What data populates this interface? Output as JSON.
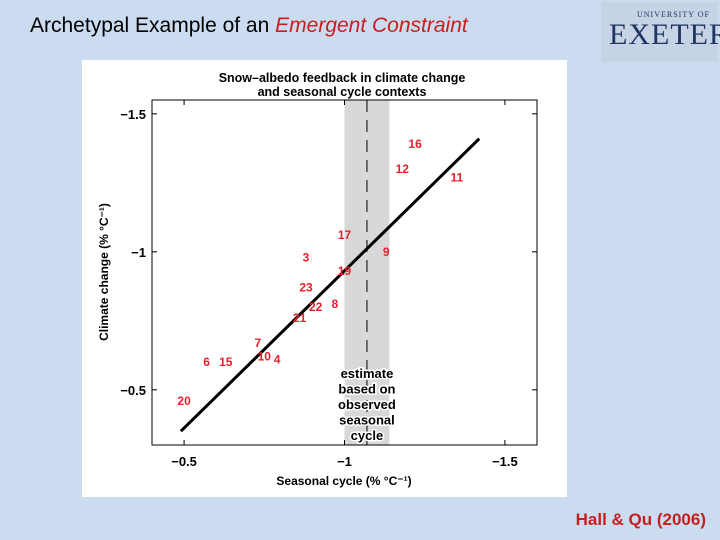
{
  "slide": {
    "title_prefix": "Archetypal Example of an ",
    "title_emphasis": "Emergent Constraint",
    "citation": "Hall & Qu (2006)",
    "logo": {
      "top": "UNIVERSITY OF",
      "main": "EXETER"
    },
    "colors": {
      "background": "#ccdcf0",
      "accent": "#c81e1e",
      "logo": "#1f3563"
    }
  },
  "chart_data": {
    "type": "scatter",
    "title_lines": [
      "Snow–albedo feedback in climate change",
      "and seasonal cycle contexts"
    ],
    "xlabel": "Seasonal cycle (% °C⁻¹)",
    "ylabel": "Climate change (% °C⁻¹)",
    "xlim": [
      -0.4,
      -1.6
    ],
    "ylim": [
      -0.3,
      -1.55
    ],
    "x_ticks": [
      -0.5,
      -1,
      -1.5
    ],
    "x_tick_labels": [
      "−0.5",
      "−1",
      "−1.5"
    ],
    "y_ticks": [
      -0.5,
      -1,
      -1.5
    ],
    "y_tick_labels": [
      "−0.5",
      "−1",
      "−1.5"
    ],
    "marker_color": "#e8202a",
    "points": [
      {
        "label": "16",
        "x": -1.22,
        "y": -1.39
      },
      {
        "label": "12",
        "x": -1.18,
        "y": -1.3
      },
      {
        "label": "11",
        "x": -1.35,
        "y": -1.27
      },
      {
        "label": "17",
        "x": -1.0,
        "y": -1.06
      },
      {
        "label": "9",
        "x": -1.13,
        "y": -1.0
      },
      {
        "label": "3",
        "x": -0.88,
        "y": -0.98
      },
      {
        "label": "19",
        "x": -1.0,
        "y": -0.93
      },
      {
        "label": "23",
        "x": -0.88,
        "y": -0.87
      },
      {
        "label": "22",
        "x": -0.91,
        "y": -0.8
      },
      {
        "label": "8",
        "x": -0.97,
        "y": -0.81
      },
      {
        "label": "21",
        "x": -0.86,
        "y": -0.76
      },
      {
        "label": "7",
        "x": -0.73,
        "y": -0.67
      },
      {
        "label": "10",
        "x": -0.75,
        "y": -0.62
      },
      {
        "label": "4",
        "x": -0.79,
        "y": -0.61
      },
      {
        "label": "6",
        "x": -0.57,
        "y": -0.6
      },
      {
        "label": "15",
        "x": -0.63,
        "y": -0.6
      },
      {
        "label": "20",
        "x": -0.5,
        "y": -0.46
      }
    ],
    "fit_line": {
      "x": [
        -0.49,
        -1.42
      ],
      "y": [
        -0.35,
        -1.41
      ]
    },
    "observed_estimate": {
      "center": -1.07,
      "range": [
        -1.0,
        -1.14
      ],
      "label_lines": [
        "estimate",
        "based on",
        "observed",
        "seasonal",
        "cycle"
      ],
      "band_color": "#d8d8d8"
    }
  }
}
